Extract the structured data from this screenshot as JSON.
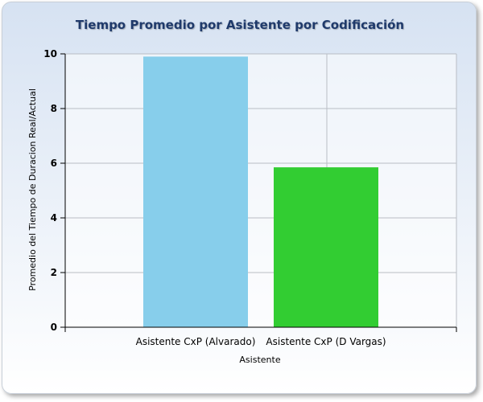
{
  "chart_data": {
    "type": "bar",
    "title": "Tiempo Promedio por Asistente por Codificación",
    "xlabel": "Asistente",
    "ylabel": "Promedio del Tiempo de Duracion Real/Actual",
    "categories": [
      "Asistente CxP (Alvarado)",
      "Asistente CxP (D Vargas)"
    ],
    "values": [
      9.9,
      5.85
    ],
    "colors": [
      "#87ceeb",
      "#32cd32"
    ],
    "ylim": [
      0,
      10
    ],
    "yticks": [
      "0",
      "2",
      "4",
      "6",
      "8",
      "10"
    ],
    "grid": true,
    "legend": false
  }
}
